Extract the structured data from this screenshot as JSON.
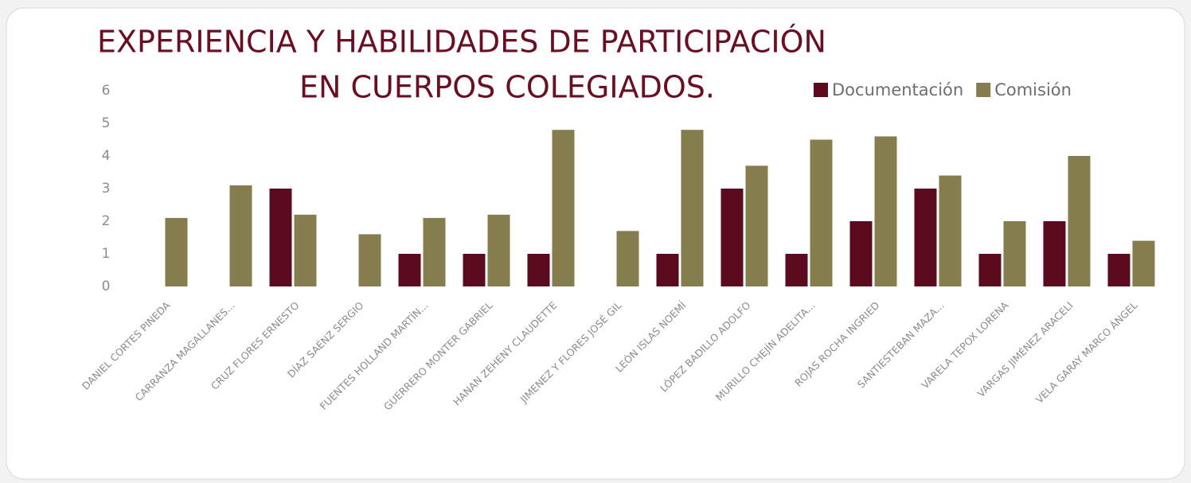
{
  "chart_data": {
    "type": "bar",
    "title": [
      "EXPERIENCIA Y HABILIDADES DE PARTICIPACIÓN",
      "EN CUERPOS COLEGIADOS."
    ],
    "categories": [
      "DANIEL CORTES PINEDA",
      "CARRANZA MAGALLANES...",
      "CRUZ FLORES ERNESTO",
      "DÍAZ SAÉNZ SERGIO",
      "FUENTES HOLLAND MARTÍN...",
      "GUERRERO MONTER GABRIEL",
      "HANAN ZEHENY CLAUDETTE",
      "JIMENEZ Y FLORES JOSÉ GIL",
      "LEÓN ISLAS NOEMÍ",
      "LÓPEZ BADILLO ADOLFO",
      "MURILLO CHEJÍN ADELITA...",
      "ROJAS ROCHA INGRIED",
      "SANTIESTEBAN MAZA...",
      "VARELA TEPOX LORENA",
      "VARGAS JIMÉNEZ ARACELI",
      "VELA GARAY MARCO ÁNGEL"
    ],
    "series": [
      {
        "name": "Documentación",
        "color": "#5c0a1e",
        "values": [
          0,
          0,
          3,
          0,
          1,
          1,
          1,
          0,
          1,
          3,
          1,
          2,
          3,
          1,
          2,
          1
        ]
      },
      {
        "name": "Comisión",
        "color": "#857d4e",
        "values": [
          2.1,
          3.1,
          2.2,
          1.6,
          2.1,
          2.2,
          4.8,
          1.7,
          4.8,
          3.7,
          4.5,
          4.6,
          3.4,
          2.0,
          4.0,
          1.4
        ]
      }
    ],
    "ylim": [
      0,
      6
    ],
    "yticks": [
      0,
      1,
      2,
      3,
      4,
      5,
      6
    ],
    "grid": false,
    "legend": "top-right"
  }
}
